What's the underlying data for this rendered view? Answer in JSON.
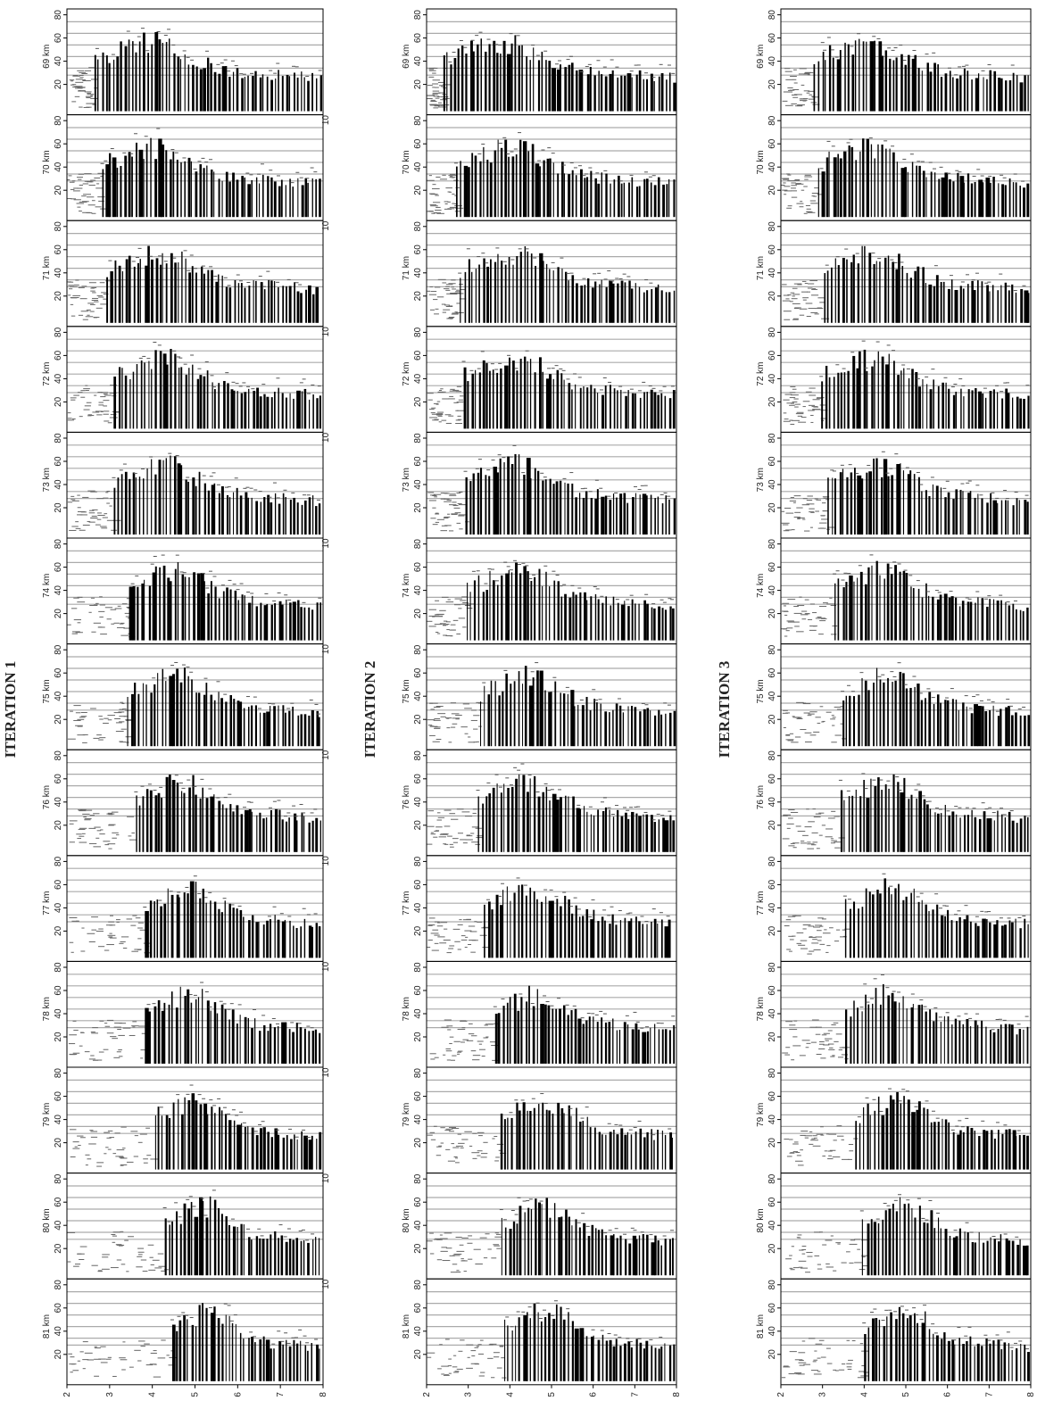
{
  "columns": [
    {
      "title": "ITERATION 1",
      "panels": [
        "69 km",
        "70 km",
        "71 km",
        "72 km",
        "73 km",
        "74 km",
        "75 km",
        "76 km",
        "77 km",
        "78 km",
        "79 km",
        "80 km",
        "81 km"
      ]
    },
    {
      "title": "ITERATION 2",
      "panels": [
        "69 km",
        "70 km",
        "71 km",
        "72 km",
        "73 km",
        "74 km",
        "75 km",
        "76 km",
        "77 km",
        "78 km",
        "79 km",
        "80 km",
        "81 km"
      ]
    },
    {
      "title": "ITERATION 3",
      "panels": [
        "69 km",
        "70 km",
        "71 km",
        "72 km",
        "73 km",
        "74 km",
        "75 km",
        "76 km",
        "77 km",
        "78 km",
        "79 km",
        "80 km",
        "81 km"
      ]
    }
  ],
  "y_ticks": [
    "20",
    "40",
    "60",
    "80"
  ],
  "x_ticks": [
    "2",
    "3",
    "4",
    "5",
    "6",
    "7",
    "8"
  ],
  "corner_label": "10"
}
